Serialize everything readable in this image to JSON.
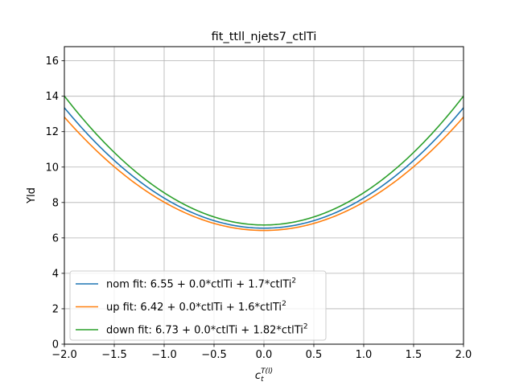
{
  "chart_data": {
    "type": "line",
    "title": "fit_ttll_njets7_ctlTi",
    "xlabel": "c_t^{T(l)}",
    "xlabel_parts": {
      "base": "c",
      "sub": "t",
      "sup": "T(l)"
    },
    "ylabel": "Yld",
    "xlim": [
      -2.0,
      2.0
    ],
    "ylim": [
      0,
      16.8
    ],
    "xticks": [
      -2.0,
      -1.5,
      -1.0,
      -0.5,
      0.0,
      0.5,
      1.0,
      1.5,
      2.0
    ],
    "xtick_labels": [
      "−2.0",
      "−1.5",
      "−1.0",
      "−0.5",
      "0.0",
      "0.5",
      "1.0",
      "1.5",
      "2.0"
    ],
    "yticks": [
      0,
      2,
      4,
      6,
      8,
      10,
      12,
      14,
      16
    ],
    "ytick_labels": [
      "0",
      "2",
      "4",
      "6",
      "8",
      "10",
      "12",
      "14",
      "16"
    ],
    "grid": true,
    "legend_position": "lower-left",
    "series": [
      {
        "name": "nom fit: 6.55 + 0.0*ctlTi + 1.7*ctlTi",
        "name_sup": "2",
        "color": "#1f77b4",
        "coefficients": [
          6.55,
          0.0,
          1.7
        ]
      },
      {
        "name": "up fit: 6.42 + 0.0*ctlTi + 1.6*ctlTi",
        "name_sup": "2",
        "color": "#ff7f0e",
        "coefficients": [
          6.42,
          0.0,
          1.6
        ]
      },
      {
        "name": "down fit: 6.73 + 0.0*ctlTi + 1.82*ctlTi",
        "name_sup": "2",
        "color": "#2ca02c",
        "coefficients": [
          6.73,
          0.0,
          1.82
        ]
      }
    ]
  }
}
